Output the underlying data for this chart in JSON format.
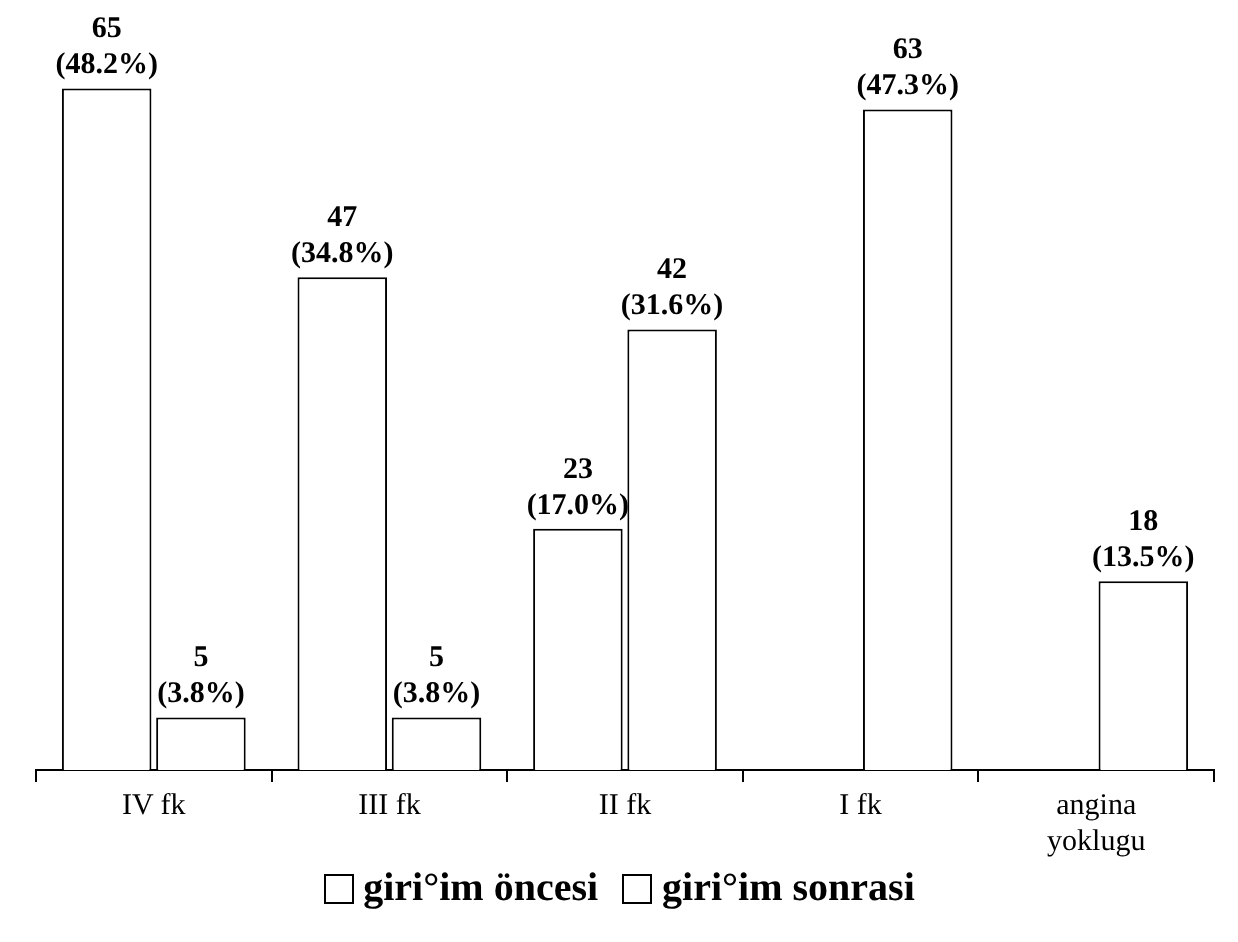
{
  "chart_data": {
    "type": "bar",
    "categories": [
      "IV fk",
      "III fk",
      "II fk",
      "I fk",
      "angina yoklugu"
    ],
    "series": [
      {
        "name": "giri°im öncesi",
        "color": "#ffffff",
        "values": [
          65,
          47,
          23,
          null,
          null
        ],
        "value_labels": [
          "65 (48.2%)",
          "47 (34.8%)",
          "23 (17.0%)",
          null,
          null
        ]
      },
      {
        "name": "giri°im sonrasi",
        "color": "#ffffff",
        "values": [
          5,
          5,
          42,
          63,
          18
        ],
        "value_labels": [
          "5 (3.8%)",
          "5 (3.8%)",
          "42 (31.6%)",
          "63 (47.3%)",
          "18 (13.5%)"
        ]
      }
    ],
    "legend": "bottom",
    "grid": false,
    "tick_labels": "x"
  }
}
